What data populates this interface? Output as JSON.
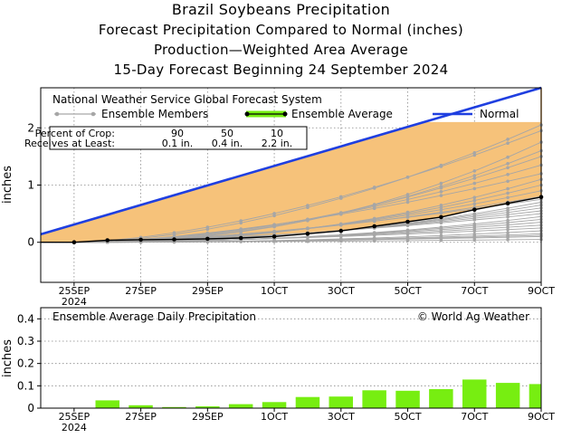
{
  "titles": [
    "Brazil Soybeans Precipitation",
    "Forecast Precipitation Compared to Normal (inches)",
    "Production—Weighted Area Average",
    "15-Day Forecast Beginning 24 September 2024"
  ],
  "colors": {
    "normal": "#1f3fe0",
    "area": "#f6c27a",
    "ensemble_avg": "#000000",
    "members": "#a6a6a6",
    "bars": "#77ee11"
  },
  "chart_data": [
    {
      "type": "line",
      "title": "National Weather Service Global Forecast System",
      "ylabel": "inches",
      "ylim": [
        -0.7,
        2.7
      ],
      "yticks": [
        0,
        1,
        2
      ],
      "x_tick_labels": [
        "25SEP",
        "27SEP",
        "29SEP",
        "1OCT",
        "3OCT",
        "5OCT",
        "7OCT",
        "9OCT"
      ],
      "x_tick_days": [
        1,
        3,
        5,
        7,
        9,
        11,
        13,
        15
      ],
      "x_sublabel": "2024",
      "xlim": [
        0,
        15
      ],
      "legend": [
        {
          "label": "Ensemble Members"
        },
        {
          "label": "Ensemble Average"
        },
        {
          "label": "Normal"
        }
      ],
      "crop_table": {
        "row1_label": "Percent of Crop:",
        "row1_values": [
          "90",
          "50",
          "10"
        ],
        "row2_label": "Receives at Least:",
        "row2_values": [
          "0.1 in.",
          "0.4 in.",
          "2.2 in."
        ]
      },
      "normal": {
        "x": [
          0,
          15
        ],
        "y": [
          0.14,
          2.7
        ]
      },
      "ensemble_average": {
        "x": [
          1,
          2,
          3,
          4,
          5,
          6,
          7,
          8,
          9,
          10,
          11,
          12,
          13,
          14,
          15
        ],
        "y": [
          0.0,
          0.035,
          0.045,
          0.05,
          0.06,
          0.075,
          0.1,
          0.15,
          0.2,
          0.28,
          0.36,
          0.44,
          0.57,
          0.68,
          0.79
        ]
      },
      "members_x": [
        1,
        2,
        3,
        4,
        5,
        6,
        7,
        8,
        9,
        10,
        11,
        12,
        13,
        14,
        15
      ],
      "members_end": [
        0.05,
        0.1,
        0.12,
        0.15,
        0.2,
        0.25,
        0.3,
        0.35,
        0.4,
        0.45,
        0.5,
        0.55,
        0.6,
        0.65,
        0.7,
        0.75,
        0.8,
        0.9,
        1.0,
        1.1,
        1.2,
        1.35,
        1.5,
        1.6,
        1.75,
        1.95,
        2.05
      ]
    },
    {
      "type": "bar",
      "title": "Ensemble Average Daily Precipitation",
      "watermark": "© World Ag Weather",
      "ylabel": "inches",
      "ylim": [
        0,
        0.45
      ],
      "yticks": [
        0,
        0.1,
        0.2,
        0.3,
        0.4
      ],
      "ytick_labels": [
        "0",
        "0.1",
        "0.2",
        "0.3",
        "0.4"
      ],
      "days": [
        1,
        2,
        3,
        4,
        5,
        6,
        7,
        8,
        9,
        10,
        11,
        12,
        13,
        14,
        15
      ],
      "values": [
        0.0,
        0.035,
        0.013,
        0.005,
        0.008,
        0.018,
        0.027,
        0.05,
        0.052,
        0.08,
        0.078,
        0.085,
        0.128,
        0.113,
        0.108
      ]
    }
  ]
}
